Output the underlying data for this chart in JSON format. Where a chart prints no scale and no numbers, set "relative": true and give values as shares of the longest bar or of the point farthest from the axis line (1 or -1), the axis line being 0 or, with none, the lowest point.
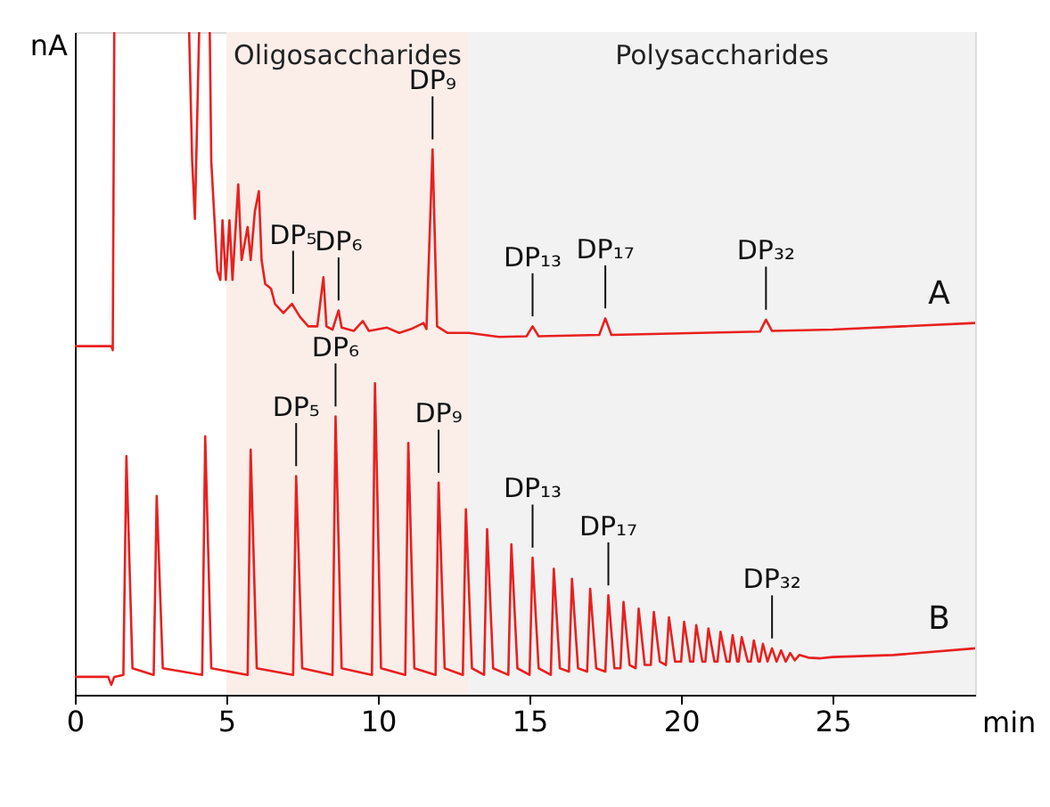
{
  "chart_data": {
    "type": "line",
    "relative": true,
    "ylabel": "nA",
    "xlabel": "min",
    "xlim": [
      0,
      29.7
    ],
    "xticks": [
      0,
      5,
      10,
      15,
      20,
      25
    ],
    "grid": false,
    "bands": [
      {
        "axis": "x",
        "from": 5,
        "to": 13,
        "label": "Oligosaccharides",
        "color": "#fbeee9"
      },
      {
        "axis": "x",
        "from": 13,
        "to": 29.7,
        "label": "Polysaccharides",
        "color": "#f2f2f2"
      }
    ],
    "series": [
      {
        "name": "A",
        "color": "#e8201f",
        "x": [
          0,
          1.2,
          1.25,
          1.3,
          1.35,
          3.7,
          3.77,
          3.87,
          3.96,
          4.1,
          4.2,
          4.4,
          4.45,
          4.5,
          4.7,
          4.8,
          4.87,
          4.98,
          5.1,
          5.2,
          5.39,
          5.5,
          5.7,
          5.8,
          5.94,
          6.07,
          6.16,
          6.28,
          6.47,
          6.6,
          6.88,
          7.16,
          7.43,
          7.7,
          8.0,
          8.2,
          8.3,
          8.5,
          8.7,
          8.8,
          9.2,
          9.5,
          9.7,
          10.3,
          10.7,
          11.1,
          11.5,
          11.6,
          11.8,
          11.95,
          12.3,
          13,
          14,
          14.9,
          15.1,
          15.3,
          17.3,
          17.5,
          17.7,
          22.6,
          22.8,
          23.0,
          25,
          29.7
        ],
        "values": [
          0.526,
          0.526,
          0.52,
          1.0,
          null,
          null,
          1.0,
          0.805,
          0.718,
          1.0,
          null,
          null,
          1.0,
          0.805,
          0.64,
          0.626,
          0.716,
          0.626,
          0.716,
          0.626,
          0.77,
          0.656,
          0.706,
          0.656,
          0.73,
          0.76,
          0.656,
          0.62,
          0.613,
          0.59,
          0.576,
          0.59,
          0.57,
          0.556,
          0.556,
          0.63,
          0.556,
          0.551,
          0.58,
          0.554,
          0.549,
          0.564,
          0.549,
          0.554,
          0.546,
          0.552,
          0.561,
          0.552,
          0.823,
          0.556,
          0.546,
          0.546,
          0.54,
          0.541,
          0.556,
          0.541,
          0.543,
          0.568,
          0.543,
          0.548,
          0.566,
          0.549,
          0.551,
          0.561
        ]
      },
      {
        "name": "B",
        "color": "#e8201f",
        "x": [
          0,
          1.1,
          1.2,
          1.3,
          1.6,
          1.7,
          1.9,
          2.6,
          2.7,
          2.9,
          4.2,
          4.3,
          4.5,
          5.7,
          5.8,
          6.0,
          7.2,
          7.3,
          7.5,
          8.5,
          8.6,
          8.8,
          9.8,
          9.9,
          10.1,
          10.9,
          11.0,
          11.2,
          11.9,
          12.0,
          12.2,
          12.8,
          12.9,
          13.1,
          13.5,
          13.6,
          13.8,
          14.3,
          14.4,
          14.6,
          15.0,
          15.1,
          15.3,
          15.7,
          15.8,
          16.0,
          16.3,
          16.4,
          16.6,
          16.9,
          17.0,
          17.2,
          17.5,
          17.6,
          17.8,
          18.0,
          18.1,
          18.3,
          18.5,
          18.6,
          18.8,
          19.0,
          19.1,
          19.3,
          19.5,
          19.6,
          19.8,
          20.0,
          20.1,
          20.3,
          20.4,
          20.5,
          20.7,
          20.8,
          20.9,
          21.1,
          21.2,
          21.3,
          21.5,
          21.6,
          21.7,
          21.85,
          21.9,
          22.0,
          22.2,
          22.3,
          22.4,
          22.55,
          22.6,
          22.7,
          22.85,
          23.0,
          23.15,
          23.3,
          23.45,
          23.6,
          23.75,
          23.9,
          24.2,
          24.6,
          25,
          27,
          29.7
        ],
        "values": [
          0.027,
          0.027,
          0.015,
          0.027,
          0.03,
          0.36,
          0.04,
          0.03,
          0.3,
          0.04,
          0.03,
          0.39,
          0.04,
          0.03,
          0.37,
          0.04,
          0.03,
          0.33,
          0.04,
          0.03,
          0.42,
          0.04,
          0.03,
          0.47,
          0.04,
          0.03,
          0.38,
          0.04,
          0.03,
          0.32,
          0.04,
          0.03,
          0.28,
          0.04,
          0.03,
          0.25,
          0.04,
          0.03,
          0.227,
          0.04,
          0.03,
          0.207,
          0.04,
          0.03,
          0.19,
          0.04,
          0.035,
          0.175,
          0.04,
          0.035,
          0.16,
          0.04,
          0.035,
          0.15,
          0.04,
          0.04,
          0.14,
          0.045,
          0.04,
          0.13,
          0.045,
          0.045,
          0.125,
          0.05,
          0.045,
          0.117,
          0.05,
          0.05,
          0.11,
          0.05,
          0.05,
          0.105,
          0.05,
          0.05,
          0.1,
          0.05,
          0.05,
          0.095,
          0.05,
          0.05,
          0.09,
          0.05,
          0.05,
          0.087,
          0.05,
          0.05,
          0.082,
          0.05,
          0.05,
          0.077,
          0.05,
          0.07,
          0.05,
          0.067,
          0.05,
          0.063,
          0.052,
          0.06,
          0.056,
          0.055,
          0.057,
          0.06,
          0.07
        ]
      }
    ],
    "annotations": [
      {
        "text": "DP₅",
        "x": 7.2,
        "y": 0.59
      },
      {
        "text": "DP₆",
        "x": 8.7,
        "y": 0.58
      },
      {
        "text": "DP₉",
        "x": 11.8,
        "y": 0.823
      },
      {
        "text": "DP₁₃",
        "x": 15.1,
        "y": 0.556
      },
      {
        "text": "DP₁₇",
        "x": 17.5,
        "y": 0.568
      },
      {
        "text": "DP₃₂",
        "x": 22.8,
        "y": 0.566
      },
      {
        "text": "DP₅",
        "x": 7.3,
        "y": 0.33
      },
      {
        "text": "DP₆",
        "x": 8.6,
        "y": 0.42
      },
      {
        "text": "DP₉",
        "x": 12.0,
        "y": 0.32
      },
      {
        "text": "DP₁₃",
        "x": 15.1,
        "y": 0.207
      },
      {
        "text": "DP₁₇",
        "x": 17.6,
        "y": 0.15
      },
      {
        "text": "DP₃₂",
        "x": 23.0,
        "y": 0.07
      }
    ]
  }
}
